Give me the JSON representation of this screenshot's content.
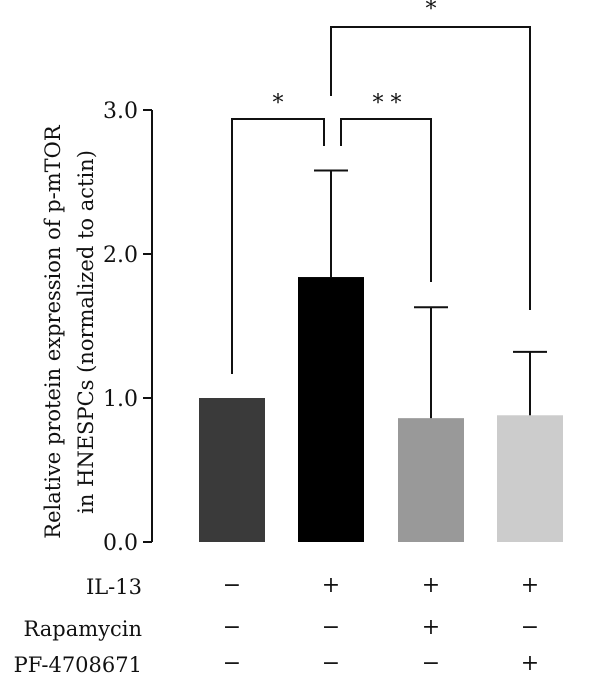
{
  "chart_data": {
    "type": "bar",
    "ylabel_lines": [
      "Relative protein expression of p-mTOR",
      "in HNESPCs (normalized to actin)"
    ],
    "ylim": [
      0,
      3.0
    ],
    "yticks": [
      "0.0",
      "1.0",
      "2.0",
      "3.0"
    ],
    "ytick_values": [
      0,
      1,
      2,
      3
    ],
    "bars": [
      {
        "value": 1.0,
        "error": 0.0,
        "color": "#3a3a3a"
      },
      {
        "value": 1.84,
        "error": 0.74,
        "color": "#000000"
      },
      {
        "value": 0.86,
        "error": 0.77,
        "color": "#999999"
      },
      {
        "value": 0.88,
        "error": 0.44,
        "color": "#cccccc"
      }
    ],
    "conditions": [
      {
        "label": "IL-13",
        "marks": [
          "−",
          "+",
          "+",
          "+"
        ]
      },
      {
        "label": "Rapamycin",
        "marks": [
          "−",
          "−",
          "+",
          "−"
        ]
      },
      {
        "label": "PF-4708671",
        "marks": [
          "−",
          "−",
          "−",
          "+"
        ]
      }
    ],
    "significance": [
      {
        "from": 0,
        "to": 1,
        "label": "*"
      },
      {
        "from": 1,
        "to": 2,
        "label": "* *"
      },
      {
        "from": 1,
        "to": 3,
        "label": "*"
      }
    ],
    "grid": false
  }
}
